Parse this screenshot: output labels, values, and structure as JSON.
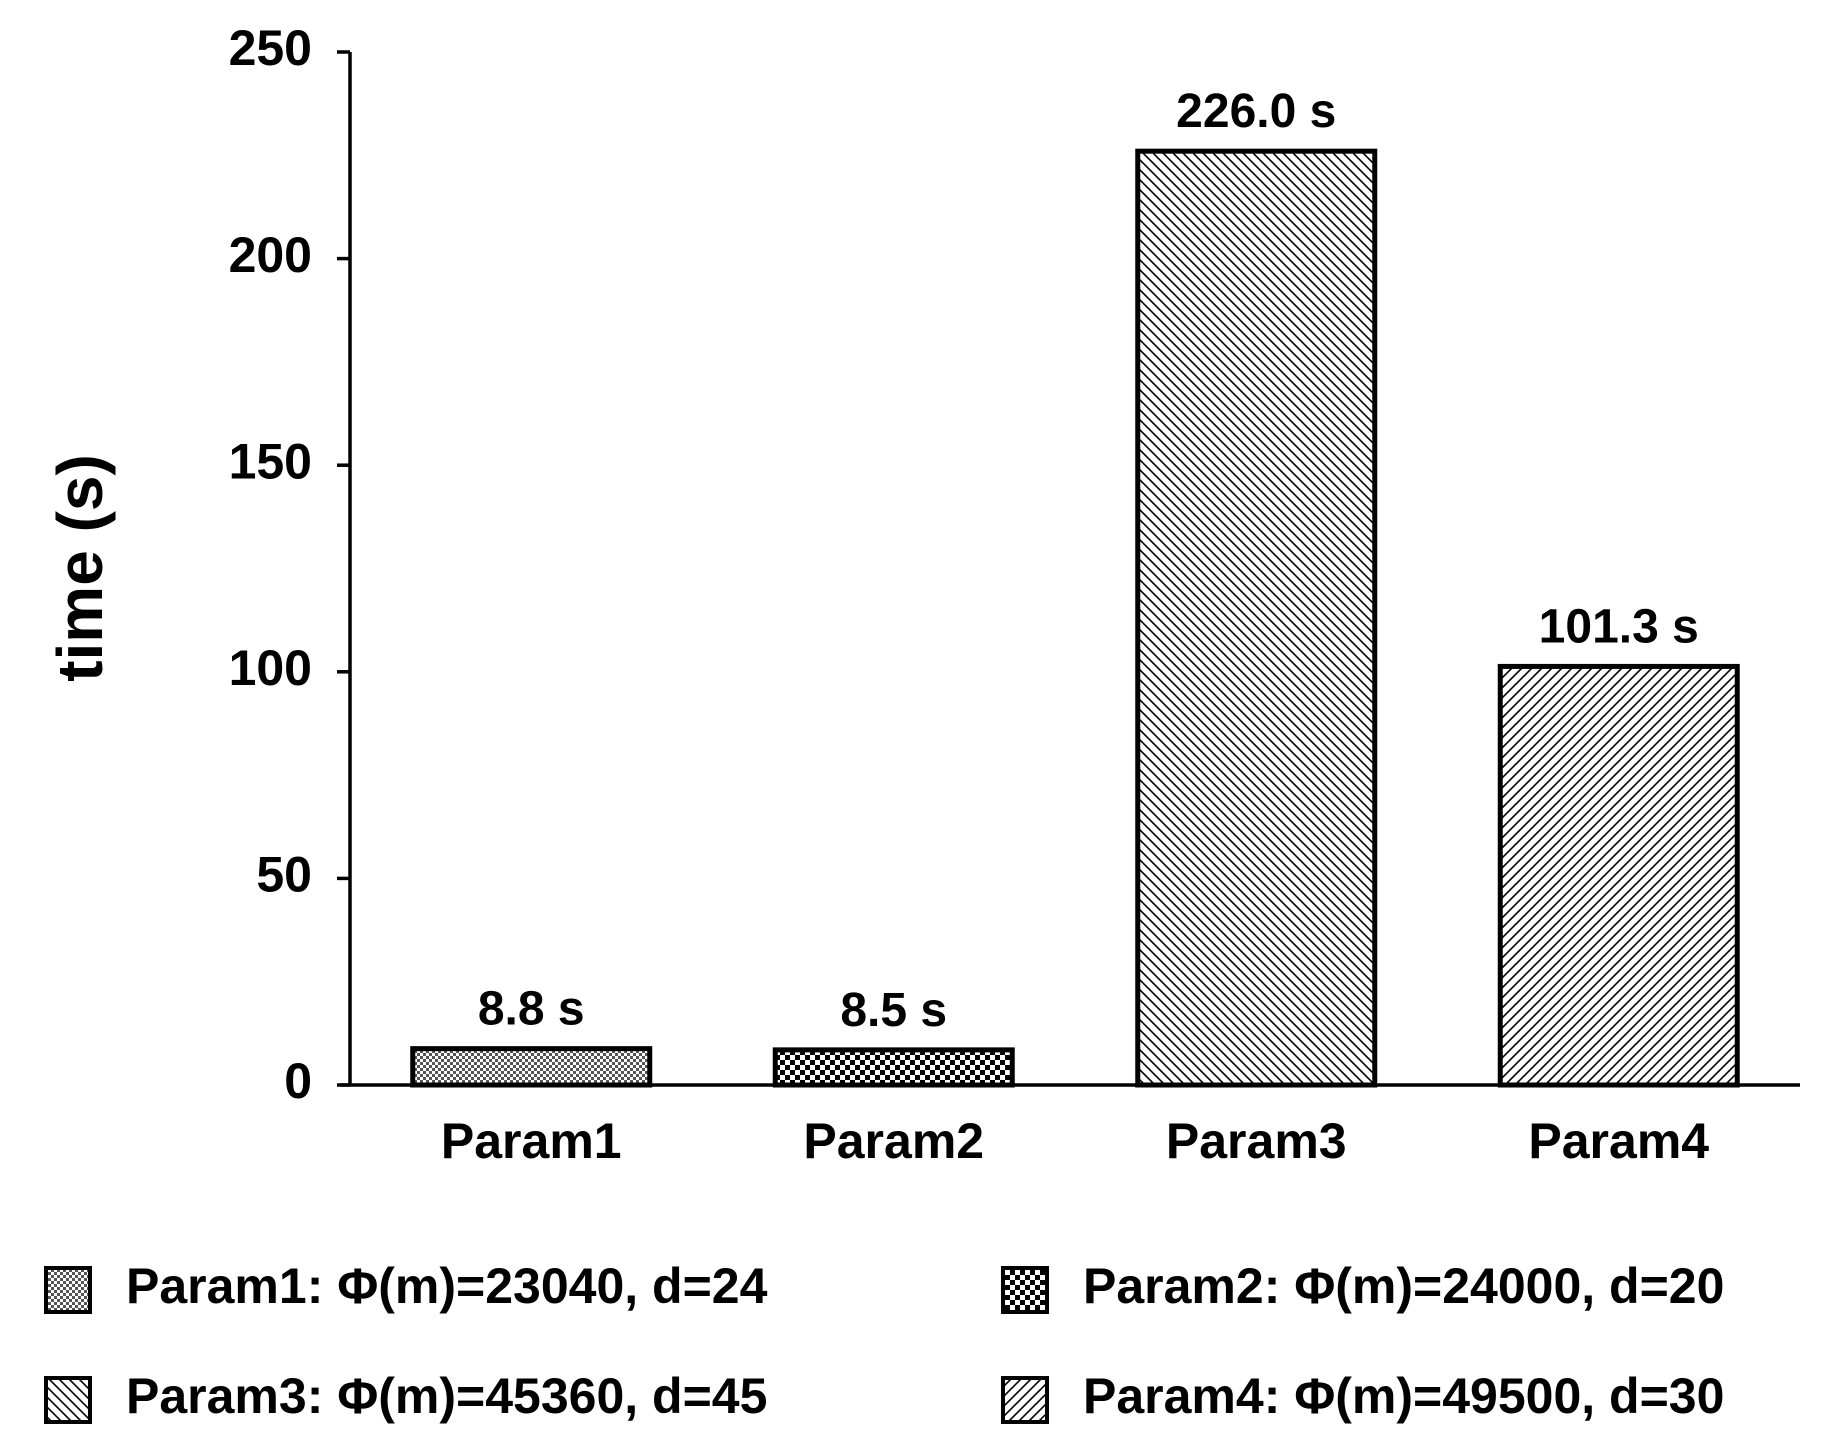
{
  "chart_data": {
    "type": "bar",
    "title": "",
    "xlabel": "",
    "ylabel": "time (s)",
    "ylim": [
      0,
      250
    ],
    "yticks": [
      0,
      50,
      100,
      150,
      200,
      250
    ],
    "grid": false,
    "legend_position": "bottom",
    "categories": [
      "Param1",
      "Param2",
      "Param3",
      "Param4"
    ],
    "values": [
      8.8,
      8.5,
      226.0,
      101.3
    ],
    "data_labels": [
      "8.8 s",
      "8.5 s",
      "226.0 s",
      "101.3 s"
    ],
    "patterns": [
      "fine-crosshatch",
      "checker",
      "diagonal-backslash",
      "diagonal-slash"
    ],
    "legend": [
      "Param1: Φ(m)=23040, d=24",
      "Param2: Φ(m)=24000, d=20",
      "Param3: Φ(m)=45360, d=45",
      "Param4: Φ(m)=49500, d=30"
    ],
    "colors": {
      "bar_stroke": "#000000",
      "background": "#ffffff"
    }
  }
}
